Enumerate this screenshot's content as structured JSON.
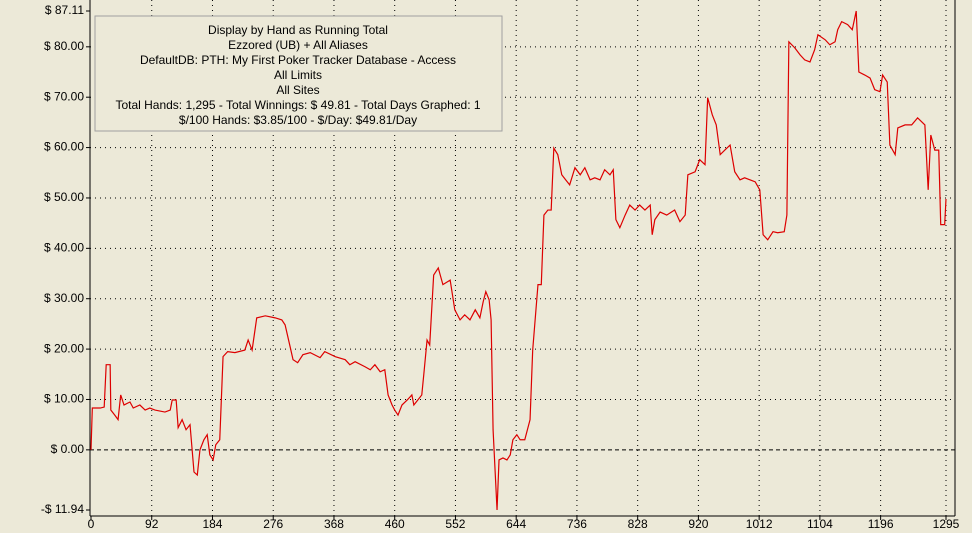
{
  "chart_data": {
    "type": "line",
    "annotations": [
      "Display by Hand as Running Total",
      "Ezzored (UB) + All Aliases",
      "DefaultDB: PTH: My First Poker Tracker Database - Access",
      "All Limits",
      "All Sites",
      "Total Hands: 1,295 - Total Winnings: $ 49.81 - Total Days Graphed: 1",
      "$/100 Hands: $3.85/100 - $/Day: $49.81/Day"
    ],
    "x": [
      0,
      2,
      14,
      20,
      23,
      29,
      30,
      36,
      41,
      45,
      50,
      59,
      64,
      74,
      82,
      89,
      97,
      112,
      120,
      123,
      129,
      132,
      138,
      144,
      150,
      156,
      161,
      165,
      171,
      176,
      180,
      185,
      189,
      195,
      200,
      207,
      218,
      233,
      238,
      244,
      251,
      264,
      279,
      289,
      294,
      301,
      306,
      313,
      321,
      332,
      347,
      354,
      370,
      385,
      392,
      400,
      415,
      423,
      430,
      438,
      445,
      450,
      456,
      460,
      465,
      471,
      479,
      486,
      489,
      495,
      501,
      504,
      509,
      513,
      519,
      526,
      533,
      544,
      551,
      559,
      566,
      574,
      582,
      589,
      594,
      598,
      603,
      606,
      609,
      612,
      615,
      618,
      624,
      630,
      635,
      639,
      645,
      650,
      657,
      665,
      669,
      677,
      682,
      686,
      692,
      697,
      701,
      707,
      713,
      719,
      725,
      733,
      741,
      748,
      756,
      763,
      771,
      778,
      786,
      791,
      795,
      801,
      809,
      816,
      824,
      831,
      839,
      847,
      850,
      854,
      862,
      872,
      884,
      892,
      900,
      904,
      915,
      922,
      930,
      934,
      941,
      947,
      953,
      960,
      968,
      975,
      983,
      990,
      998,
      1006,
      1013,
      1018,
      1025,
      1033,
      1040,
      1050,
      1054,
      1057,
      1066,
      1074,
      1081,
      1089,
      1096,
      1101,
      1112,
      1119,
      1127,
      1131,
      1137,
      1146,
      1153,
      1159,
      1163,
      1172,
      1180,
      1187,
      1195,
      1199,
      1206,
      1210,
      1218,
      1222,
      1233,
      1243,
      1252,
      1263,
      1268,
      1272,
      1278,
      1284,
      1287,
      1293,
      1295
    ],
    "series": [
      {
        "color": "#dd0000",
        "values": [
          0,
          8.3,
          8.3,
          8.5,
          16.9,
          16.9,
          7.9,
          6.9,
          6.0,
          10.9,
          8.9,
          9.5,
          8.3,
          8.9,
          7.9,
          8.3,
          7.9,
          7.5,
          7.9,
          9.9,
          9.9,
          4.4,
          6.0,
          4.0,
          5.0,
          -4.4,
          -5.0,
          0,
          2.0,
          3.0,
          -1.0,
          -2.0,
          1.0,
          2.0,
          18.5,
          19.5,
          19.3,
          19.8,
          21.8,
          19.8,
          26.2,
          26.6,
          26.2,
          25.8,
          24.8,
          20.8,
          17.9,
          17.3,
          18.9,
          19.3,
          18.3,
          19.5,
          18.5,
          17.9,
          16.9,
          17.5,
          16.5,
          15.9,
          16.9,
          15.5,
          15.9,
          10.9,
          8.9,
          7.9,
          6.9,
          8.9,
          9.9,
          10.9,
          8.9,
          9.9,
          10.9,
          14.9,
          21.8,
          20.8,
          34.7,
          36.1,
          32.8,
          33.7,
          27.8,
          25.8,
          26.8,
          25.8,
          27.8,
          26.2,
          29.4,
          31.4,
          29.8,
          25.8,
          4.0,
          -4.0,
          -11.94,
          -2.0,
          -1.6,
          -2.0,
          -1.0,
          2.0,
          3.0,
          2.0,
          2.0,
          6.0,
          19.8,
          32.8,
          32.8,
          46.6,
          47.6,
          47.6,
          59.9,
          58.6,
          54.6,
          53.6,
          52.6,
          56.0,
          54.6,
          56.0,
          53.6,
          54.0,
          53.6,
          55.6,
          54.6,
          55.6,
          45.7,
          44.1,
          46.6,
          48.6,
          47.6,
          48.6,
          47.6,
          48.6,
          42.7,
          45.7,
          47.2,
          46.6,
          47.6,
          45.3,
          46.6,
          54.6,
          55.2,
          57.6,
          56.6,
          69.9,
          66.5,
          64.5,
          58.6,
          59.5,
          60.5,
          55.2,
          53.6,
          54.0,
          53.6,
          53.2,
          51.6,
          42.7,
          41.7,
          43.3,
          43.1,
          43.3,
          46.6,
          81.0,
          79.8,
          78.4,
          77.4,
          77.0,
          79.4,
          82.4,
          81.4,
          80.4,
          81.0,
          83.4,
          85.0,
          84.4,
          83.4,
          87.11,
          75.0,
          74.4,
          73.8,
          71.5,
          71.1,
          74.4,
          73.0,
          60.5,
          58.6,
          63.9,
          64.5,
          64.5,
          65.9,
          64.5,
          51.6,
          62.5,
          59.5,
          59.5,
          44.7,
          44.7,
          49.81
        ]
      }
    ],
    "xlim": [
      0,
      1295
    ],
    "xticks": [
      0,
      92,
      184,
      276,
      368,
      460,
      552,
      644,
      736,
      828,
      920,
      1012,
      1104,
      1196,
      1295
    ],
    "ylim": [
      -11.94,
      87.11
    ],
    "yticks": [
      {
        "value": -11.94,
        "label": "-$ 11.94"
      },
      {
        "value": 0,
        "label": "$ 0.00"
      },
      {
        "value": 10,
        "label": "$ 10.00"
      },
      {
        "value": 20,
        "label": "$ 20.00"
      },
      {
        "value": 30,
        "label": "$ 30.00"
      },
      {
        "value": 40,
        "label": "$ 40.00"
      },
      {
        "value": 50,
        "label": "$ 50.00"
      },
      {
        "value": 60,
        "label": "$ 60.00"
      },
      {
        "value": 70,
        "label": "$ 70.00"
      },
      {
        "value": 80,
        "label": "$ 80.00"
      },
      {
        "value": 87.11,
        "label": "$ 87.11"
      }
    ],
    "grid": true
  }
}
